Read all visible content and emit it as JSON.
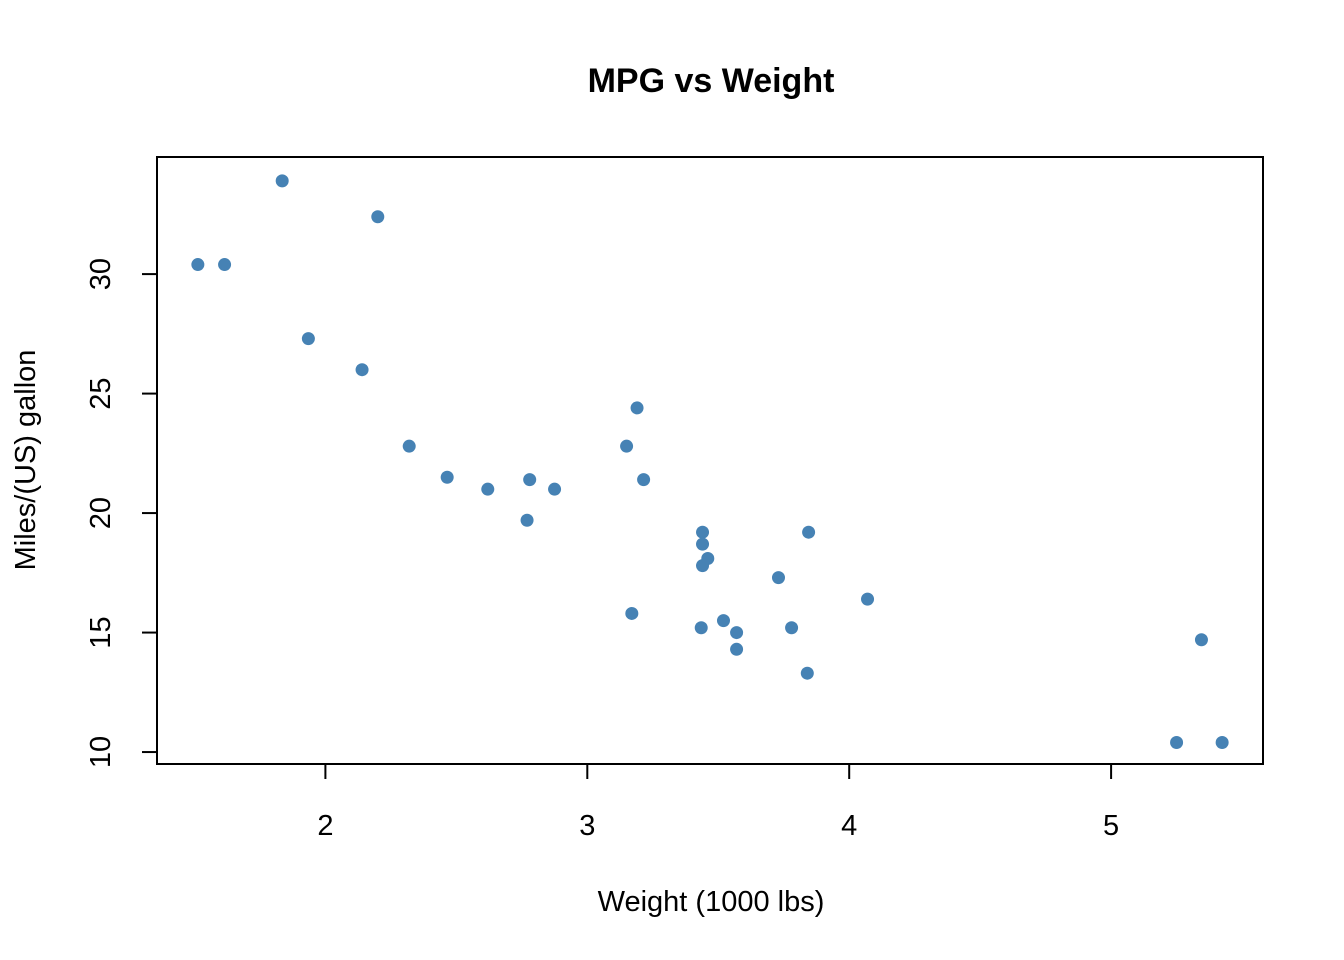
{
  "chart_data": {
    "type": "scatter",
    "title": "MPG vs Weight",
    "xlabel": "Weight (1000 lbs)",
    "ylabel": "Miles/(US) gallon",
    "xlim": [
      1.357,
      5.58
    ],
    "ylim": [
      9.5,
      34.9
    ],
    "x_ticks": [
      2,
      3,
      4,
      5
    ],
    "y_ticks": [
      10,
      15,
      20,
      25,
      30
    ],
    "grid": false,
    "legend": "none",
    "point_color": "#4682B4",
    "series": [
      {
        "points": [
          {
            "x": 1.513,
            "y": 30.4
          },
          {
            "x": 1.615,
            "y": 30.4
          },
          {
            "x": 1.835,
            "y": 33.9
          },
          {
            "x": 1.935,
            "y": 27.3
          },
          {
            "x": 2.14,
            "y": 26.0
          },
          {
            "x": 2.2,
            "y": 32.4
          },
          {
            "x": 2.32,
            "y": 22.8
          },
          {
            "x": 2.465,
            "y": 21.5
          },
          {
            "x": 2.62,
            "y": 21.0
          },
          {
            "x": 2.77,
            "y": 19.7
          },
          {
            "x": 2.78,
            "y": 21.4
          },
          {
            "x": 2.875,
            "y": 21.0
          },
          {
            "x": 3.15,
            "y": 22.8
          },
          {
            "x": 3.17,
            "y": 15.8
          },
          {
            "x": 3.19,
            "y": 24.4
          },
          {
            "x": 3.215,
            "y": 21.4
          },
          {
            "x": 3.435,
            "y": 15.2
          },
          {
            "x": 3.44,
            "y": 18.7
          },
          {
            "x": 3.44,
            "y": 19.2
          },
          {
            "x": 3.44,
            "y": 17.8
          },
          {
            "x": 3.46,
            "y": 18.1
          },
          {
            "x": 3.52,
            "y": 15.5
          },
          {
            "x": 3.57,
            "y": 14.3
          },
          {
            "x": 3.57,
            "y": 15.0
          },
          {
            "x": 3.73,
            "y": 17.3
          },
          {
            "x": 3.78,
            "y": 15.2
          },
          {
            "x": 3.84,
            "y": 13.3
          },
          {
            "x": 3.845,
            "y": 19.2
          },
          {
            "x": 4.07,
            "y": 16.4
          },
          {
            "x": 5.25,
            "y": 10.4
          },
          {
            "x": 5.345,
            "y": 14.7
          },
          {
            "x": 5.424,
            "y": 10.4
          }
        ]
      }
    ]
  }
}
